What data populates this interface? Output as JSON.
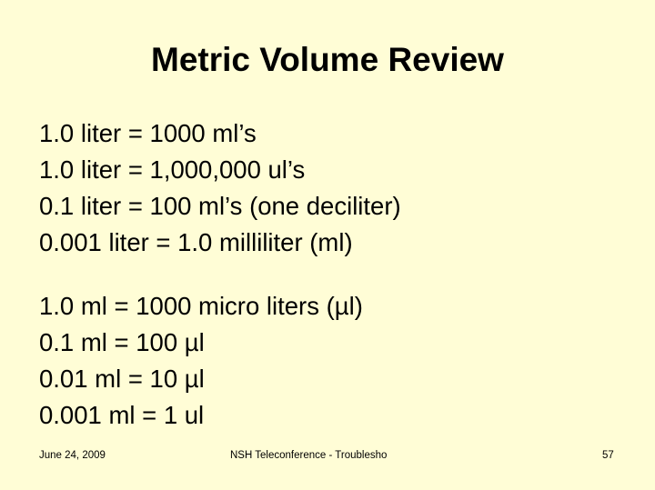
{
  "slide": {
    "title": "Metric Volume Review",
    "group1": [
      "1.0 liter = 1000 ml’s",
      "1.0 liter = 1,000,000 ul’s",
      "0.1 liter = 100 ml’s (one deciliter)",
      "0.001 liter = 1.0 milliliter (ml)"
    ],
    "group2": [
      "1.0 ml = 1000 micro liters (µl)",
      "0.1 ml = 100 µl",
      "0.01 ml = 10 µl",
      "0.001 ml = 1 ul"
    ]
  },
  "footer": {
    "date": "June 24, 2009",
    "center": "NSH Teleconference - Troublesho",
    "page_number": "57"
  },
  "colors": {
    "background": "#fffdd6",
    "text": "#000000"
  }
}
